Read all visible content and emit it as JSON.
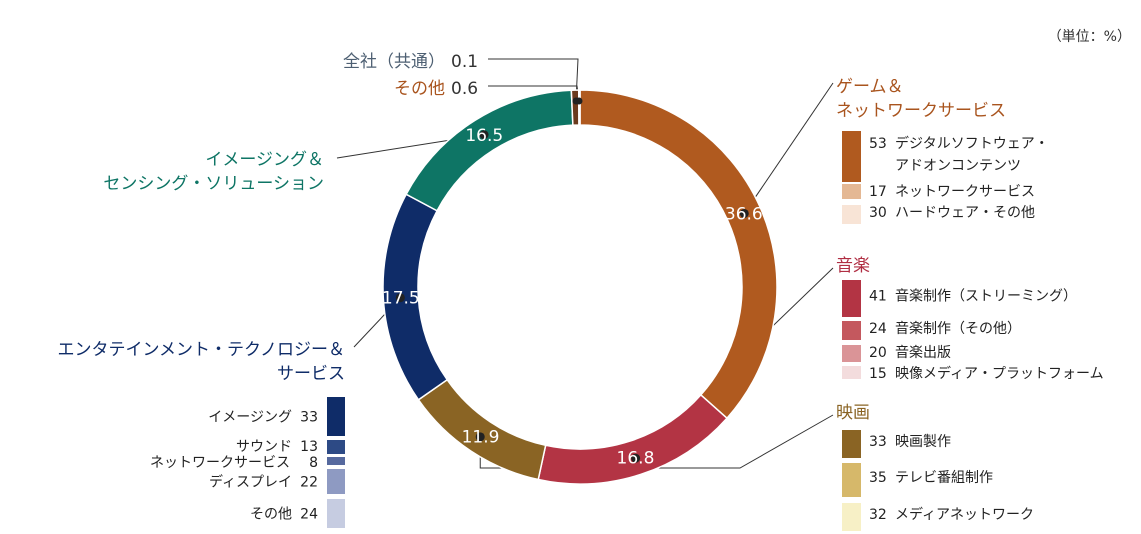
{
  "unit_label": "（単位：%）",
  "chart_data": {
    "type": "pie",
    "subtype": "donut",
    "slices": [
      {
        "key": "game",
        "value": 36.6,
        "value_label": "36.6",
        "color": "#b05a1f",
        "text_color": "#a9541e",
        "label_lines": [
          "ゲーム＆",
          "ネットワークサービス"
        ]
      },
      {
        "key": "music",
        "value": 16.8,
        "value_label": "16.8",
        "color": "#b33444",
        "text_color": "#b02e43",
        "label_lines": [
          "音楽"
        ]
      },
      {
        "key": "movie",
        "value": 11.9,
        "value_label": "11.9",
        "color": "#8a6424",
        "text_color": "#8a6424",
        "label_lines": [
          "映画"
        ]
      },
      {
        "key": "et",
        "value": 17.5,
        "value_label": "17.5",
        "color": "#0f2c68",
        "text_color": "#0f2c68",
        "label_lines": [
          "エンタテインメント・テクノロジー＆",
          "サービス"
        ]
      },
      {
        "key": "iss",
        "value": 16.5,
        "value_label": "16.5",
        "color": "#0e7565",
        "text_color": "#0e7565",
        "label_lines": [
          "イメージング＆",
          "センシング・ソリューション"
        ]
      },
      {
        "key": "other",
        "value": 0.6,
        "value_label": "0.6",
        "color": "#6b3a1e",
        "text_color": "#a9541e",
        "label_lines": [
          "その他"
        ]
      },
      {
        "key": "corp",
        "value": 0.1,
        "value_label": "0.1",
        "color": "#4d5f72",
        "text_color": "#4d5f72",
        "label_lines": [
          "全社（共通）"
        ]
      }
    ],
    "breakdowns": [
      {
        "parent": "game",
        "items": [
          {
            "value": "53",
            "label_lines": [
              "デジタルソフトウェア・",
              "アドオンコンテンツ"
            ],
            "color": "#b05a1f"
          },
          {
            "value": "17",
            "label_lines": [
              "ネットワークサービス"
            ],
            "color": "#e4b894"
          },
          {
            "value": "30",
            "label_lines": [
              "ハードウェア・その他"
            ],
            "color": "#f8e4d6"
          }
        ]
      },
      {
        "parent": "music",
        "items": [
          {
            "value": "41",
            "label_lines": [
              "音楽制作（ストリーミング）"
            ],
            "color": "#b33444"
          },
          {
            "value": "24",
            "label_lines": [
              "音楽制作（その他）"
            ],
            "color": "#c4585e"
          },
          {
            "value": "20",
            "label_lines": [
              "音楽出版"
            ],
            "color": "#da9497"
          },
          {
            "value": "15",
            "label_lines": [
              "映像メディア・プラットフォーム"
            ],
            "color": "#f3dcdd"
          }
        ]
      },
      {
        "parent": "movie",
        "items": [
          {
            "value": "33",
            "label_lines": [
              "映画製作"
            ],
            "color": "#8a6424"
          },
          {
            "value": "35",
            "label_lines": [
              "テレビ番組制作"
            ],
            "color": "#d6b86a"
          },
          {
            "value": "32",
            "label_lines": [
              "メディアネットワーク"
            ],
            "color": "#f7f0c6"
          }
        ]
      },
      {
        "parent": "et",
        "items": [
          {
            "value": "33",
            "label_lines": [
              "イメージング"
            ],
            "color": "#0f2c68"
          },
          {
            "value": "13",
            "label_lines": [
              "サウンド"
            ],
            "color": "#2d4a85"
          },
          {
            "value": "8",
            "label_lines": [
              "ネットワークサービス"
            ],
            "color": "#56699e"
          },
          {
            "value": "22",
            "label_lines": [
              "ディスプレイ"
            ],
            "color": "#8e9ac2"
          },
          {
            "value": "24",
            "label_lines": [
              "その他"
            ],
            "color": "#c6cce1"
          }
        ]
      }
    ]
  }
}
